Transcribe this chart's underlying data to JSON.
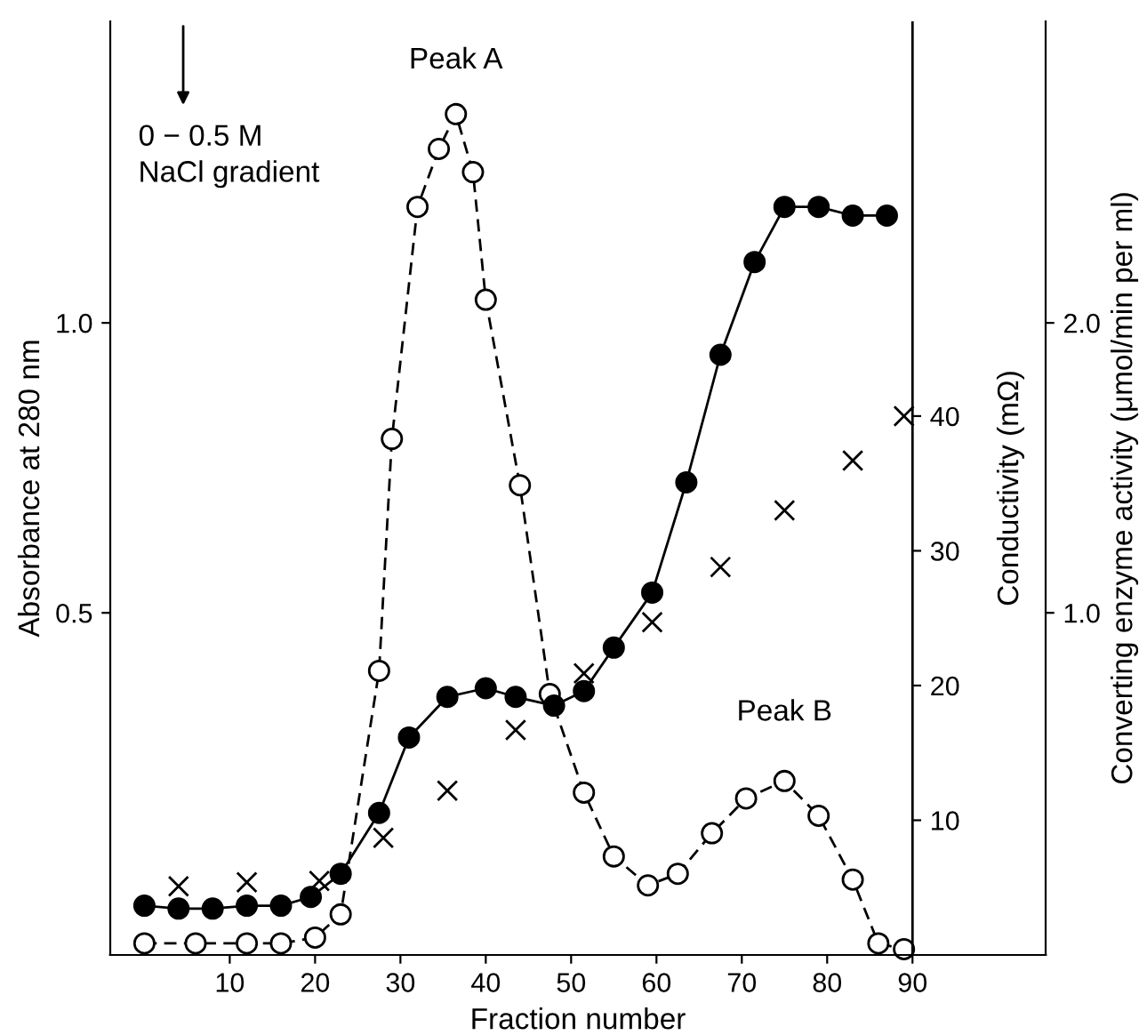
{
  "chart_data": {
    "type": "line",
    "xlabel": "Fraction number",
    "ylabel": "Absorbance at 280 nm",
    "y2label": "Converting enzyme activity (μmol/min per ml)",
    "y3label": "Conductivity (mΩ)",
    "xlim": [
      -4,
      105.6
    ],
    "xticks": [
      10,
      20,
      30,
      40,
      50,
      60,
      70,
      80,
      90
    ],
    "ylim": [
      -0.09,
      1.52
    ],
    "yticks": [
      0.5,
      {
        "value": 1,
        "label": "1.0"
      }
    ],
    "y2lim": [
      -0.18,
      3.04
    ],
    "y2ticks": [
      {
        "value": 1,
        "label": "1.0"
      },
      {
        "value": 2,
        "label": "2.0"
      }
    ],
    "y3lim": [
      0,
      69.3
    ],
    "y3ticks": [
      10,
      20,
      30,
      40
    ],
    "grid": false,
    "legend": false,
    "series": [
      {
        "color": "#000000",
        "marker": "circle",
        "line_style": "dashed",
        "x": [
          0,
          6,
          12,
          16,
          20,
          23,
          27.5,
          29,
          32,
          34.5,
          36.5,
          38.5,
          40,
          44,
          47.5,
          51.5,
          55,
          59,
          62.5,
          66.5,
          70.5,
          75,
          79,
          83,
          86,
          89
        ],
        "values": [
          -0.07,
          -0.07,
          -0.07,
          -0.07,
          -0.06,
          -0.02,
          0.4,
          0.8,
          1.2,
          1.3,
          1.36,
          1.26,
          1.04,
          0.72,
          0.36,
          0.19,
          0.08,
          0.03,
          0.05,
          0.12,
          0.18,
          0.21,
          0.15,
          0.04,
          -0.07,
          -0.08
        ]
      },
      {
        "color": "#000000",
        "marker": "circle",
        "line_style": "solid",
        "axis": "y2",
        "x": [
          0,
          4,
          8,
          12,
          16,
          19.5,
          23,
          27.5,
          31,
          35.5,
          40,
          43.5,
          48,
          51.5,
          55,
          59.5,
          63.5,
          67.5,
          71.5,
          75,
          79,
          83,
          87
        ],
        "values": [
          -0.01,
          -0.02,
          -0.02,
          -0.01,
          -0.01,
          0.02,
          0.1,
          0.31,
          0.57,
          0.71,
          0.74,
          0.71,
          0.68,
          0.73,
          0.88,
          1.07,
          1.45,
          1.89,
          2.21,
          2.4,
          2.4,
          2.37,
          2.37
        ]
      },
      {
        "type": "scatter",
        "color": "#000000",
        "marker": "cross",
        "axis": "y3",
        "x": [
          4,
          12,
          20.5,
          28,
          35.5,
          43.5,
          51.5,
          59.5,
          67.5,
          75,
          83,
          89
        ],
        "values": [
          5.1,
          5.4,
          5.5,
          8.7,
          12.2,
          16.7,
          20.9,
          24.7,
          28.8,
          33.0,
          36.7,
          40.0
        ]
      }
    ],
    "annotations": [
      {
        "text": "Peak A",
        "x": 36.5,
        "y": 1.36
      },
      {
        "text": "Peak B",
        "x": 75,
        "y": 0.21
      },
      "0 − 0.5 M\nNaCl gradient"
    ]
  }
}
